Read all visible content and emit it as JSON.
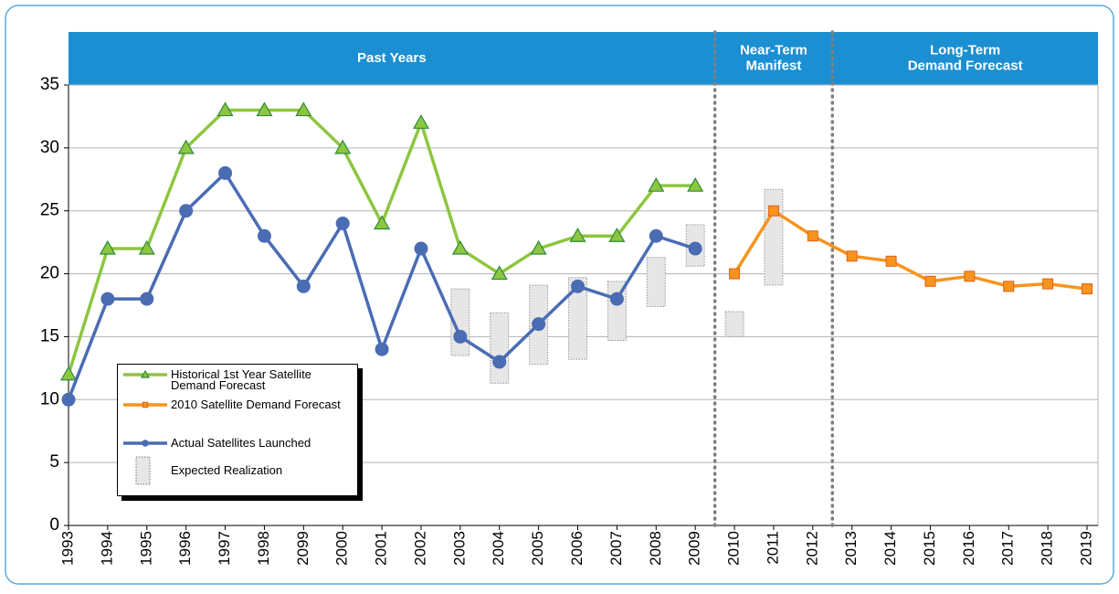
{
  "chart_data": {
    "type": "line",
    "header_sections": [
      {
        "lines": [
          "Past Years"
        ]
      },
      {
        "lines": [
          "Near-Term",
          "Manifest"
        ]
      },
      {
        "lines": [
          "Long-Term",
          "Demand Forecast"
        ]
      }
    ],
    "categories": [
      "1993",
      "1994",
      "1995",
      "1996",
      "1997",
      "1998",
      "2099",
      "2000",
      "2001",
      "2002",
      "2003",
      "2004",
      "2005",
      "2006",
      "2007",
      "2008",
      "2009",
      "2010",
      "2011",
      "2012",
      "2013",
      "2014",
      "2015",
      "2016",
      "2017",
      "2018",
      "2019"
    ],
    "series": [
      {
        "name": "Historical 1st Year Satellite Demand Forecast",
        "color": "#8dc63f",
        "marker": "triangle",
        "values": [
          12,
          22,
          22,
          30,
          33,
          33,
          33,
          30,
          24,
          32,
          22,
          20,
          22,
          23,
          23,
          27,
          27,
          null,
          null,
          null,
          null,
          null,
          null,
          null,
          null,
          null,
          null
        ]
      },
      {
        "name": "2010 Satellite Demand Forecast",
        "color": "#f7941d",
        "marker": "square",
        "values": [
          null,
          null,
          null,
          null,
          null,
          null,
          null,
          null,
          null,
          null,
          null,
          null,
          null,
          null,
          null,
          null,
          null,
          20,
          25,
          23,
          21.4,
          21,
          19.4,
          19.8,
          19,
          19.2,
          18.8
        ]
      },
      {
        "name": "Actual Satellites Launched",
        "color": "#4a6cb3",
        "marker": "circle",
        "values": [
          10,
          18,
          18,
          25,
          28,
          23,
          19,
          24,
          14,
          22,
          15,
          13,
          16,
          19,
          18,
          23,
          22,
          null,
          null,
          null,
          null,
          null,
          null,
          null,
          null,
          null,
          null
        ]
      }
    ],
    "ranges": {
      "name": "Expected Realization",
      "color": "#e6e6e6",
      "low": [
        null,
        null,
        null,
        null,
        null,
        null,
        null,
        null,
        null,
        null,
        13.5,
        11.3,
        12.8,
        13.2,
        14.7,
        17.4,
        20.6,
        15,
        19.1,
        null,
        null,
        null,
        null,
        null,
        null,
        null,
        null
      ],
      "high": [
        null,
        null,
        null,
        null,
        null,
        null,
        null,
        null,
        null,
        null,
        18.8,
        16.9,
        19.1,
        19.7,
        19.4,
        21.3,
        23.9,
        17,
        26.7,
        null,
        null,
        null,
        null,
        null,
        null,
        null,
        null
      ]
    },
    "ylim": [
      0,
      35
    ],
    "yticks": [
      0,
      5,
      10,
      15,
      20,
      25,
      30,
      35
    ],
    "grid": true
  }
}
